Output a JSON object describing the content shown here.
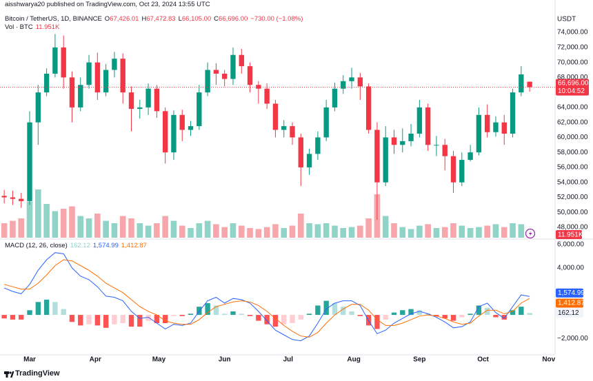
{
  "header": {
    "publisher": "aisshwarya20 published on TradingView.com, Oct 23, 2024 13:55 UTC",
    "symbol": "Bitcoin / TetherUS, 1D, BINANCE",
    "ohlc": [
      {
        "key": "O",
        "value": "67,426.01"
      },
      {
        "key": "H",
        "value": "67,472.83"
      },
      {
        "key": "L",
        "value": "66,105.00"
      },
      {
        "key": "C",
        "value": "66,696.00"
      }
    ],
    "change": "−730.00 (−1.08%)",
    "volume_title": "Vol · BTC",
    "volume_value": "11.951K",
    "currency": "USDT"
  },
  "chart_data": [
    {
      "type": "candlestick",
      "x": [
        -12,
        -8,
        -4,
        0,
        4,
        8,
        12,
        16,
        20,
        24,
        28,
        32,
        36,
        40,
        44,
        48,
        52,
        56,
        60,
        64,
        68,
        72,
        76,
        80,
        84,
        88,
        92,
        96,
        100,
        104,
        108,
        112,
        116,
        120,
        124,
        128,
        132,
        136,
        140,
        144,
        148,
        152,
        156,
        160,
        164,
        168,
        172,
        176,
        180,
        184,
        188,
        192,
        196,
        200,
        204,
        208,
        212,
        216,
        220,
        224,
        228,
        232,
        236
      ],
      "open": [
        52200,
        52000,
        51800,
        51500,
        62000,
        66000,
        68500,
        72000,
        68000,
        64000,
        67000,
        70000,
        66000,
        69000,
        70500,
        66000,
        63800,
        64000,
        66500,
        63500,
        58000,
        63000,
        61000,
        61500,
        66000,
        69000,
        68500,
        67800,
        71000,
        69500,
        67000,
        66500,
        64500,
        61000,
        61500,
        60000,
        56000,
        57800,
        60000,
        64000,
        66500,
        67500,
        68000,
        66800,
        61000,
        54000,
        60000,
        59000,
        59500,
        60500,
        64000,
        59000,
        59000,
        57500,
        54000,
        57000,
        58000,
        63000,
        60700,
        62000,
        60500,
        66000,
        67426.01
      ],
      "high": [
        53000,
        52900,
        52600,
        63500,
        67000,
        69200,
        73800,
        73600,
        68800,
        68000,
        71000,
        71300,
        69800,
        71400,
        71200,
        66800,
        65000,
        67200,
        67000,
        64000,
        63600,
        63700,
        62200,
        67000,
        70000,
        69900,
        69000,
        72000,
        71800,
        70000,
        67500,
        67200,
        65000,
        62300,
        62000,
        60500,
        58500,
        60800,
        65000,
        67300,
        68300,
        69300,
        68600,
        67200,
        62000,
        61500,
        61000,
        61200,
        61800,
        65000,
        64500,
        60200,
        59800,
        58200,
        58000,
        59000,
        64000,
        64400,
        62800,
        63000,
        66500,
        69500,
        67472.83
      ],
      "low": [
        51200,
        51000,
        50600,
        51000,
        59000,
        65500,
        68000,
        66500,
        62000,
        63500,
        66500,
        65000,
        65500,
        68000,
        64500,
        60800,
        62500,
        63000,
        62600,
        56500,
        57000,
        59500,
        60200,
        61000,
        65500,
        67000,
        66800,
        67000,
        68500,
        66000,
        64500,
        63800,
        60000,
        60000,
        59000,
        53500,
        55000,
        57000,
        59500,
        63500,
        65800,
        66500,
        65000,
        60500,
        49000,
        53500,
        57800,
        58000,
        58800,
        60000,
        58200,
        57500,
        55600,
        52600,
        53500,
        56800,
        57600,
        60000,
        60100,
        59000,
        60000,
        65500,
        66105.0
      ],
      "close": [
        52000,
        51800,
        51500,
        62000,
        66000,
        68500,
        72000,
        68000,
        64000,
        67000,
        70000,
        66000,
        69000,
        70500,
        66000,
        63800,
        64000,
        66500,
        63500,
        58000,
        63000,
        61000,
        61500,
        66000,
        69000,
        68500,
        67800,
        71000,
        69500,
        67000,
        66500,
        64500,
        61000,
        61500,
        60000,
        56000,
        57800,
        60000,
        64000,
        66500,
        67500,
        68000,
        66800,
        61000,
        54000,
        60000,
        59000,
        59500,
        60500,
        64000,
        59000,
        59000,
        57500,
        54000,
        57000,
        58000,
        63000,
        60700,
        62000,
        60500,
        66000,
        68400,
        66696
      ],
      "last_label": "66,696.00",
      "countdown": "10:04:52",
      "volume": {
        "values": [
          30,
          35,
          40,
          75,
          100,
          70,
          55,
          60,
          65,
          45,
          40,
          50,
          35,
          30,
          45,
          40,
          30,
          25,
          30,
          45,
          35,
          25,
          20,
          30,
          35,
          28,
          22,
          30,
          25,
          20,
          18,
          22,
          28,
          20,
          25,
          50,
          30,
          28,
          30,
          25,
          20,
          22,
          25,
          40,
          90,
          45,
          30,
          22,
          18,
          25,
          28,
          20,
          22,
          30,
          25,
          20,
          22,
          25,
          28,
          22,
          30,
          28,
          11.951
        ],
        "last_label": "11.951K",
        "up_color": "#8fd4c7",
        "down_color": "#f7a6ac"
      },
      "up_color": "#089981",
      "down_color": "#f23645",
      "xlim": [
        -14,
        248
      ],
      "xticks": [
        {
          "value": 0,
          "label": "Mar"
        },
        {
          "value": 31,
          "label": "Apr"
        },
        {
          "value": 61,
          "label": "May"
        },
        {
          "value": 92,
          "label": "Jun"
        },
        {
          "value": 122,
          "label": "Jul"
        },
        {
          "value": 153,
          "label": "Aug"
        },
        {
          "value": 184,
          "label": "Sep"
        },
        {
          "value": 214,
          "label": "Oct"
        },
        {
          "value": 245,
          "label": "Nov"
        }
      ],
      "ylim": [
        46620,
        76950
      ],
      "yticks": [
        {
          "value": 48000,
          "label": "48,000.00"
        },
        {
          "value": 50000,
          "label": "50,000.00"
        },
        {
          "value": 52000,
          "label": "52,000.00"
        },
        {
          "value": 54000,
          "label": "54,000.00"
        },
        {
          "value": 56000,
          "label": "56,000.00"
        },
        {
          "value": 58000,
          "label": "58,000.00"
        },
        {
          "value": 60000,
          "label": "60,000.00"
        },
        {
          "value": 62000,
          "label": "62,000.00"
        },
        {
          "value": 64000,
          "label": "64,000.00"
        },
        {
          "value": 68000,
          "label": "68,000.00"
        },
        {
          "value": 70000,
          "label": "70,000.00"
        },
        {
          "value": 72000,
          "label": "72,000.00"
        },
        {
          "value": 74000,
          "label": "74,000.00"
        }
      ]
    },
    {
      "type": "macd",
      "title": "MACD (12, 26, close)",
      "macd": {
        "color": "#2962ff",
        "last_label": "1,574.99",
        "values": [
          2300,
          2000,
          1800,
          2600,
          3800,
          4700,
          5300,
          5200,
          4000,
          3300,
          3000,
          2400,
          1600,
          1500,
          1200,
          300,
          -300,
          -200,
          -700,
          -1200,
          -800,
          -900,
          -700,
          300,
          1200,
          1500,
          1000,
          1400,
          1300,
          1000,
          300,
          -500,
          -1300,
          -1700,
          -2100,
          -2200,
          -1800,
          -700,
          500,
          1000,
          1200,
          1200,
          800,
          -500,
          -1600,
          -1300,
          -700,
          -300,
          100,
          300,
          100,
          -200,
          -600,
          -1100,
          -1000,
          -600,
          700,
          1000,
          200,
          -300,
          700,
          1700,
          1574.99
        ]
      },
      "signal": {
        "color": "#ff6d00",
        "last_label": "1,412.87",
        "values": [
          2600,
          2400,
          2200,
          2200,
          2700,
          3400,
          4200,
          4700,
          4600,
          4200,
          3800,
          3300,
          2700,
          2300,
          1900,
          1300,
          700,
          300,
          0,
          -500,
          -700,
          -800,
          -800,
          -400,
          200,
          700,
          900,
          1100,
          1200,
          1100,
          800,
          300,
          -300,
          -900,
          -1400,
          -1800,
          -1900,
          -1500,
          -700,
          0,
          500,
          900,
          900,
          400,
          -400,
          -900,
          -900,
          -700,
          -400,
          -100,
          0,
          -100,
          -300,
          -600,
          -800,
          -700,
          -100,
          400,
          400,
          100,
          300,
          1000,
          1412.87
        ]
      },
      "histogram": {
        "colors": {
          "up_rising": "#26a69a",
          "up_falling": "#b2dfdb",
          "down_falling": "#ff5252",
          "down_rising": "#ffcdd2"
        },
        "label_color": "#8fd4c7",
        "values": [
          -300,
          -400,
          -400,
          400,
          1100,
          1300,
          1100,
          500,
          -600,
          -900,
          -800,
          -900,
          -1100,
          -800,
          -700,
          -1000,
          -1000,
          -500,
          -700,
          -700,
          -100,
          -100,
          100,
          700,
          1000,
          800,
          100,
          300,
          100,
          -100,
          -500,
          -800,
          -1000,
          -800,
          -700,
          -400,
          100,
          800,
          1200,
          1000,
          700,
          300,
          -100,
          -900,
          -1200,
          -400,
          200,
          400,
          500,
          400,
          100,
          -100,
          -300,
          -500,
          -200,
          100,
          800,
          600,
          -200,
          -400,
          400,
          700,
          162.12
        ]
      },
      "ylim": [
        -3400,
        6400
      ],
      "yticks": [
        {
          "value": -2000,
          "label": "−2,000.00"
        },
        {
          "value": 4000,
          "label": "4,000.00"
        },
        {
          "value": 6000,
          "label": "6,000.00"
        }
      ]
    }
  ],
  "footer": {
    "brand": "TradingView"
  }
}
